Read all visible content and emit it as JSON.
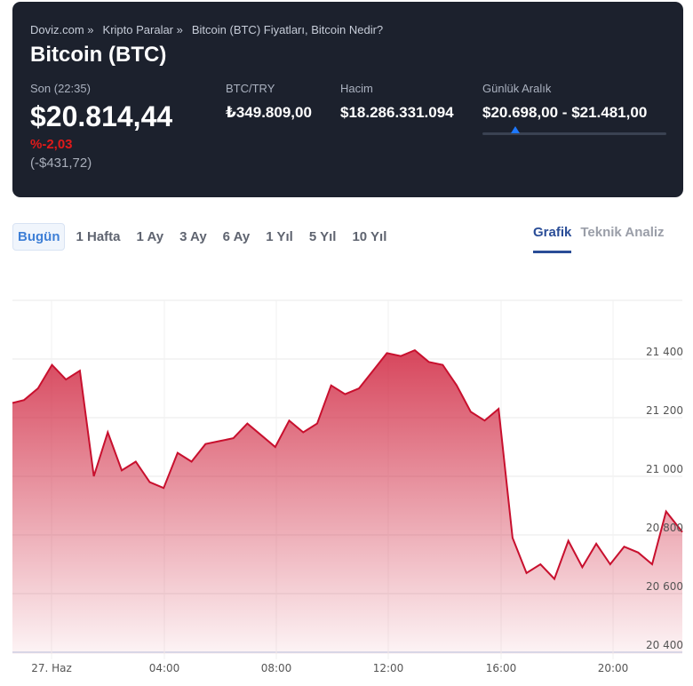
{
  "breadcrumb": [
    "Doviz.com »",
    "Kripto Paralar »",
    "Bitcoin (BTC) Fiyatları, Bitcoin Nedir?"
  ],
  "title": "Bitcoin (BTC)",
  "stats": {
    "last": {
      "label": "Son (22:35)",
      "value": "$20.814,44",
      "change_pct": "%-2,03",
      "change_abs": "(-$431,72)"
    },
    "btc_try": {
      "label": "BTC/TRY",
      "value": "₺349.809,00"
    },
    "volume": {
      "label": "Hacim",
      "value": "$18.286.331.094"
    },
    "daily_range": {
      "label": "Günlük Aralık",
      "value": "$20.698,00 - $21.481,00"
    }
  },
  "colors": {
    "header_bg": "#1c212d",
    "negative": "#e01a1a",
    "accent": "#2a4d97",
    "line": "#c8102e",
    "range_marker": "#1e78ff"
  },
  "periods": [
    "Bugün",
    "1 Hafta",
    "1 Ay",
    "3 Ay",
    "6 Ay",
    "1 Yıl",
    "5 Yıl",
    "10 Yıl"
  ],
  "active_period": "Bugün",
  "views": [
    "Grafik",
    "Teknik Analiz"
  ],
  "active_view": "Grafik",
  "chart_data": {
    "type": "area",
    "title": "Bitcoin (BTC) intraday",
    "xlabel": "",
    "ylabel": "",
    "x_ticks": [
      "27. Haz",
      "04:00",
      "08:00",
      "12:00",
      "16:00",
      "20:00"
    ],
    "y_ticks": [
      20400,
      20600,
      20800,
      21000,
      21200,
      21400
    ],
    "ylim": [
      20400,
      21600
    ],
    "grid": true,
    "x": [
      "22:35",
      "23:00",
      "23:30",
      "00:00",
      "00:30",
      "01:00",
      "01:30",
      "02:00",
      "02:30",
      "03:00",
      "03:30",
      "04:00",
      "04:30",
      "05:00",
      "05:30",
      "06:00",
      "06:30",
      "07:00",
      "07:30",
      "08:00",
      "08:30",
      "09:00",
      "09:30",
      "10:00",
      "10:30",
      "11:00",
      "11:30",
      "12:00",
      "12:30",
      "13:00",
      "13:30",
      "14:00",
      "14:30",
      "15:00",
      "15:30",
      "16:00",
      "16:30",
      "17:00",
      "17:30",
      "18:00",
      "18:30",
      "19:00",
      "19:30",
      "20:00",
      "20:30",
      "21:00",
      "21:30",
      "22:00",
      "22:35"
    ],
    "values": [
      21250,
      21260,
      21300,
      21380,
      21330,
      21360,
      21000,
      21150,
      21020,
      21050,
      20980,
      20960,
      21080,
      21050,
      21110,
      21120,
      21130,
      21180,
      21140,
      21100,
      21190,
      21150,
      21180,
      21310,
      21280,
      21300,
      21360,
      21420,
      21410,
      21430,
      21390,
      21380,
      21310,
      21220,
      21190,
      21230,
      20790,
      20670,
      20700,
      20650,
      20780,
      20690,
      20770,
      20700,
      20760,
      20740,
      20700,
      20880,
      20810
    ]
  }
}
